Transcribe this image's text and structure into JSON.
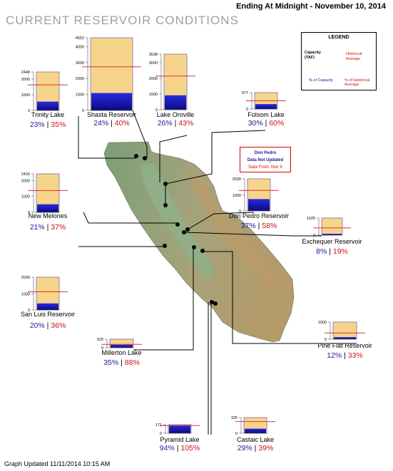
{
  "header": {
    "title": "CURRENT RESERVOIR CONDITIONS",
    "date": "Ending At Midnight - November 10, 2014"
  },
  "footer": {
    "updated": "Graph Updated 11/11/2014 10:15 AM"
  },
  "legend": {
    "title": "LEGEND",
    "capacity_label": "Capacity (TAF)",
    "historical_label": "Historical Average",
    "pct_capacity_label": "% of Capacity",
    "pct_historical_label": "% of Historical Average"
  },
  "notice": {
    "line1": "Don Pedro",
    "line2": "Data Not Updated",
    "line3": "Data From: Nov 9"
  },
  "colors": {
    "storage": "#1212b8",
    "capacity": "#f6d58a",
    "historical_line": "#e03030",
    "pct_capacity_text": "#1a1aa0",
    "pct_historical_text": "#cc1010",
    "land_high": "#b59a6a",
    "land_low": "#7aa078"
  },
  "chart_data": {
    "type": "bar",
    "title": "CURRENT RESERVOIR CONDITIONS",
    "units": "TAF",
    "reservoirs": [
      {
        "name": "Trinity Lake",
        "capacity": 2448,
        "ticks": [
          2448,
          2000,
          1000,
          0
        ],
        "historical_avg": 1627,
        "storage": 563,
        "pct_capacity": "23%",
        "pct_historical": "35%"
      },
      {
        "name": "Shasta Reservoir",
        "capacity": 4552,
        "ticks": [
          4552,
          4000,
          3000,
          2000,
          1000,
          0
        ],
        "historical_avg": 2731,
        "storage": 1092,
        "pct_capacity": "24%",
        "pct_historical": "40%"
      },
      {
        "name": "Lake Oroville",
        "capacity": 3538,
        "ticks": [
          3538,
          3000,
          2000,
          1000,
          0
        ],
        "historical_avg": 2143,
        "storage": 920,
        "pct_capacity": "26%",
        "pct_historical": "43%"
      },
      {
        "name": "Folsom Lake",
        "capacity": 977,
        "ticks": [
          977,
          0
        ],
        "historical_avg": 489,
        "storage": 293,
        "pct_capacity": "30%",
        "pct_historical": "60%"
      },
      {
        "name": "New Melones",
        "capacity": 2420,
        "ticks": [
          2420,
          2000,
          1000,
          0
        ],
        "historical_avg": 1370,
        "storage": 508,
        "pct_capacity": "21%",
        "pct_historical": "37%"
      },
      {
        "name": "Don Pedro Reservoir",
        "capacity": 2030,
        "ticks": [
          2030,
          1000,
          0
        ],
        "historical_avg": 1295,
        "storage": 751,
        "pct_capacity": "37%",
        "pct_historical": "58%"
      },
      {
        "name": "Exchequer Reservoir",
        "capacity": 1025,
        "ticks": [
          1025,
          0
        ],
        "historical_avg": 432,
        "storage": 82,
        "pct_capacity": "8%",
        "pct_historical": "19%"
      },
      {
        "name": "San Luis Reservoir",
        "capacity": 2039,
        "ticks": [
          2039,
          1000,
          0
        ],
        "historical_avg": 1133,
        "storage": 408,
        "pct_capacity": "20%",
        "pct_historical": "36%"
      },
      {
        "name": "Millerton Lake",
        "capacity": 520,
        "ticks": [
          520,
          0
        ],
        "historical_avg": 207,
        "storage": 182,
        "pct_capacity": "35%",
        "pct_historical": "88%"
      },
      {
        "name": "Pine Flat Reservoir",
        "capacity": 1000,
        "ticks": [
          1000,
          0
        ],
        "historical_avg": 364,
        "storage": 120,
        "pct_capacity": "12%",
        "pct_historical": "33%"
      },
      {
        "name": "Pyramid Lake",
        "capacity": 171,
        "ticks": [
          171,
          0
        ],
        "historical_avg": 153,
        "storage": 161,
        "pct_capacity": "94%",
        "pct_historical": "105%"
      },
      {
        "name": "Castaic Lake",
        "capacity": 325,
        "ticks": [
          325,
          0
        ],
        "historical_avg": 242,
        "storage": 94,
        "pct_capacity": "29%",
        "pct_historical": "39%"
      }
    ]
  }
}
